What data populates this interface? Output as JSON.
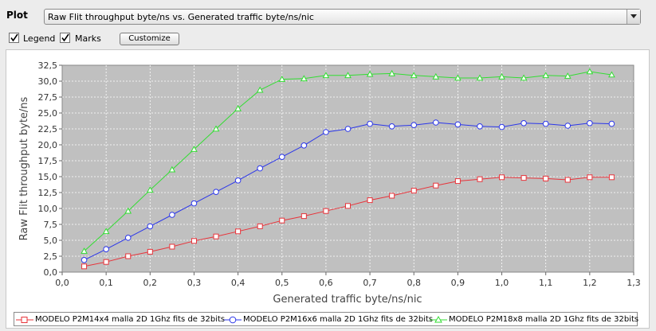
{
  "plot": {
    "label": "Plot",
    "selected": "Raw Flit throughput byte/ns vs. Generated traffic byte/ns/nic"
  },
  "controls": {
    "legend_label": "Legend",
    "legend_checked": true,
    "marks_label": "Marks",
    "marks_checked": true,
    "customize_label": "Customize"
  },
  "chart_data": {
    "type": "line",
    "title": "",
    "xlabel": "Generated traffic byte/ns/nic",
    "ylabel": "Raw Flit throughput byte/ns",
    "xlim": [
      0,
      1.3
    ],
    "ylim": [
      0,
      32.5
    ],
    "x_ticks": [
      "0,0",
      "0,1",
      "0,2",
      "0,3",
      "0,4",
      "0,5",
      "0,6",
      "0,7",
      "0,8",
      "0,9",
      "1,0",
      "1,1",
      "1,2",
      "1,3"
    ],
    "y_ticks": [
      "0,0",
      "2,5",
      "5,0",
      "7,5",
      "10,0",
      "12,5",
      "15,0",
      "17,5",
      "20,0",
      "22,5",
      "25,0",
      "27,5",
      "30,0",
      "32,5"
    ],
    "grid": true,
    "legend_position": "bottom",
    "series": [
      {
        "name": "MODELO P2M14x4 malla 2D 1Ghz fits de 32bits",
        "color": "#e8333a",
        "marker": "square",
        "x": [
          0.05,
          0.1,
          0.15,
          0.2,
          0.25,
          0.3,
          0.35,
          0.4,
          0.45,
          0.5,
          0.55,
          0.6,
          0.65,
          0.7,
          0.75,
          0.8,
          0.85,
          0.9,
          0.95,
          1.0,
          1.05,
          1.1,
          1.15,
          1.2,
          1.25
        ],
        "y": [
          0.9,
          1.6,
          2.5,
          3.2,
          4.0,
          4.9,
          5.6,
          6.4,
          7.2,
          8.1,
          8.8,
          9.6,
          10.4,
          11.3,
          12.0,
          12.8,
          13.6,
          14.3,
          14.6,
          14.9,
          14.8,
          14.7,
          14.5,
          14.9,
          14.9
        ]
      },
      {
        "name": "MODELO P2M16x6 malla 2D 1Ghz fits de 32bits",
        "color": "#2b36ea",
        "marker": "circle",
        "x": [
          0.05,
          0.1,
          0.15,
          0.2,
          0.25,
          0.3,
          0.35,
          0.4,
          0.45,
          0.5,
          0.55,
          0.6,
          0.65,
          0.7,
          0.75,
          0.8,
          0.85,
          0.9,
          0.95,
          1.0,
          1.05,
          1.1,
          1.15,
          1.2,
          1.25
        ],
        "y": [
          1.9,
          3.6,
          5.4,
          7.2,
          9.0,
          10.8,
          12.6,
          14.4,
          16.3,
          18.1,
          19.9,
          22.0,
          22.5,
          23.3,
          22.9,
          23.1,
          23.5,
          23.2,
          22.9,
          22.8,
          23.4,
          23.3,
          23.0,
          23.4,
          23.3
        ]
      },
      {
        "name": "MODELO P2M18x8 malla 2D 1Ghz fits de 32bits",
        "color": "#33dd33",
        "marker": "triangle",
        "x": [
          0.05,
          0.1,
          0.15,
          0.2,
          0.25,
          0.3,
          0.35,
          0.4,
          0.45,
          0.5,
          0.55,
          0.6,
          0.65,
          0.7,
          0.75,
          0.8,
          0.85,
          0.9,
          0.95,
          1.0,
          1.05,
          1.1,
          1.15,
          1.2,
          1.25
        ],
        "y": [
          3.3,
          6.4,
          9.6,
          12.9,
          16.1,
          19.3,
          22.5,
          25.7,
          28.6,
          30.3,
          30.4,
          30.9,
          30.9,
          31.1,
          31.2,
          30.9,
          30.7,
          30.5,
          30.5,
          30.7,
          30.5,
          30.9,
          30.8,
          31.5,
          31.0
        ]
      }
    ]
  }
}
